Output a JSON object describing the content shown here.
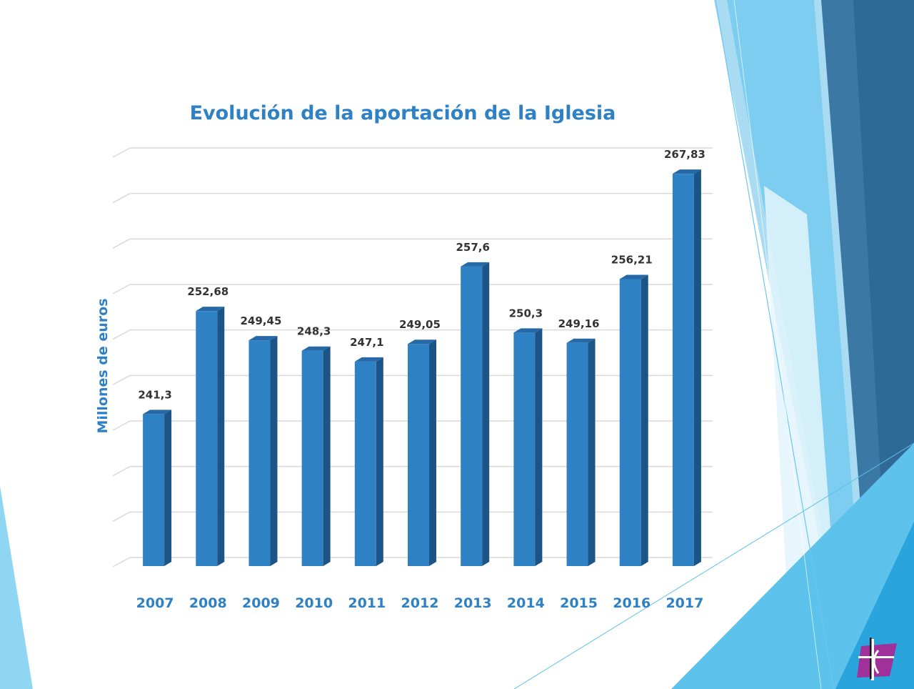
{
  "chart_data": {
    "type": "bar",
    "title": "Evolución de la aportación de la Iglesia",
    "xlabel": "",
    "ylabel": "Millones de euros",
    "categories": [
      "2007",
      "2008",
      "2009",
      "2010",
      "2011",
      "2012",
      "2013",
      "2014",
      "2015",
      "2016",
      "2017"
    ],
    "values": [
      241.3,
      252.68,
      249.45,
      248.3,
      247.1,
      249.05,
      257.6,
      250.3,
      249.16,
      256.21,
      267.83
    ],
    "value_labels": [
      "241,3",
      "252,68",
      "249,45",
      "248,3",
      "247,1",
      "249,05",
      "257,6",
      "250,3",
      "249,16",
      "256,21",
      "267,83"
    ],
    "ylim": [
      225,
      271
    ],
    "grid": true,
    "legend": "none",
    "colors": {
      "bar_front": "#2e82c4",
      "bar_side": "#1c5487",
      "bar_top": "#2569a6",
      "title": "#2f81c5",
      "tick_labels": "#2f81c5",
      "value_labels": "#333333",
      "gridline": "#d9d9d9"
    }
  },
  "decor": {
    "logo_icon": "cross-logo-icon"
  }
}
